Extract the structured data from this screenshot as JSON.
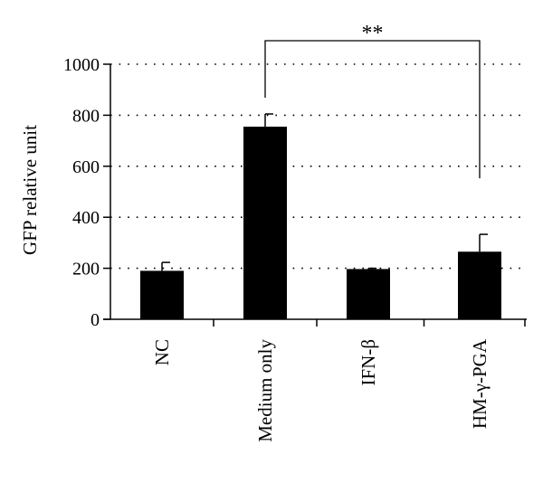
{
  "chart_data": {
    "type": "bar",
    "categories": [
      "NC",
      "Medium only",
      "IFN-β",
      "HM-γ-PGA"
    ],
    "values": [
      190,
      755,
      197,
      265
    ],
    "errors": [
      33,
      50,
      3,
      68
    ],
    "ylabel": "GFP relative unit",
    "ylim": [
      0,
      1000
    ],
    "yticks": [
      0,
      200,
      400,
      600,
      800,
      1000
    ],
    "grid": "horizontal dotted",
    "significance": {
      "from_category": "Medium only",
      "to_category": "HM-γ-PGA",
      "label": "**"
    },
    "bar_color": "#000000"
  }
}
